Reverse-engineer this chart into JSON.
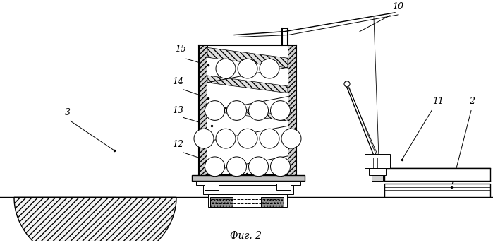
{
  "title": "Фиг. 2",
  "bg_color": "#ffffff",
  "line_color": "#000000",
  "figsize": [
    6.99,
    3.44
  ],
  "dpi": 100
}
